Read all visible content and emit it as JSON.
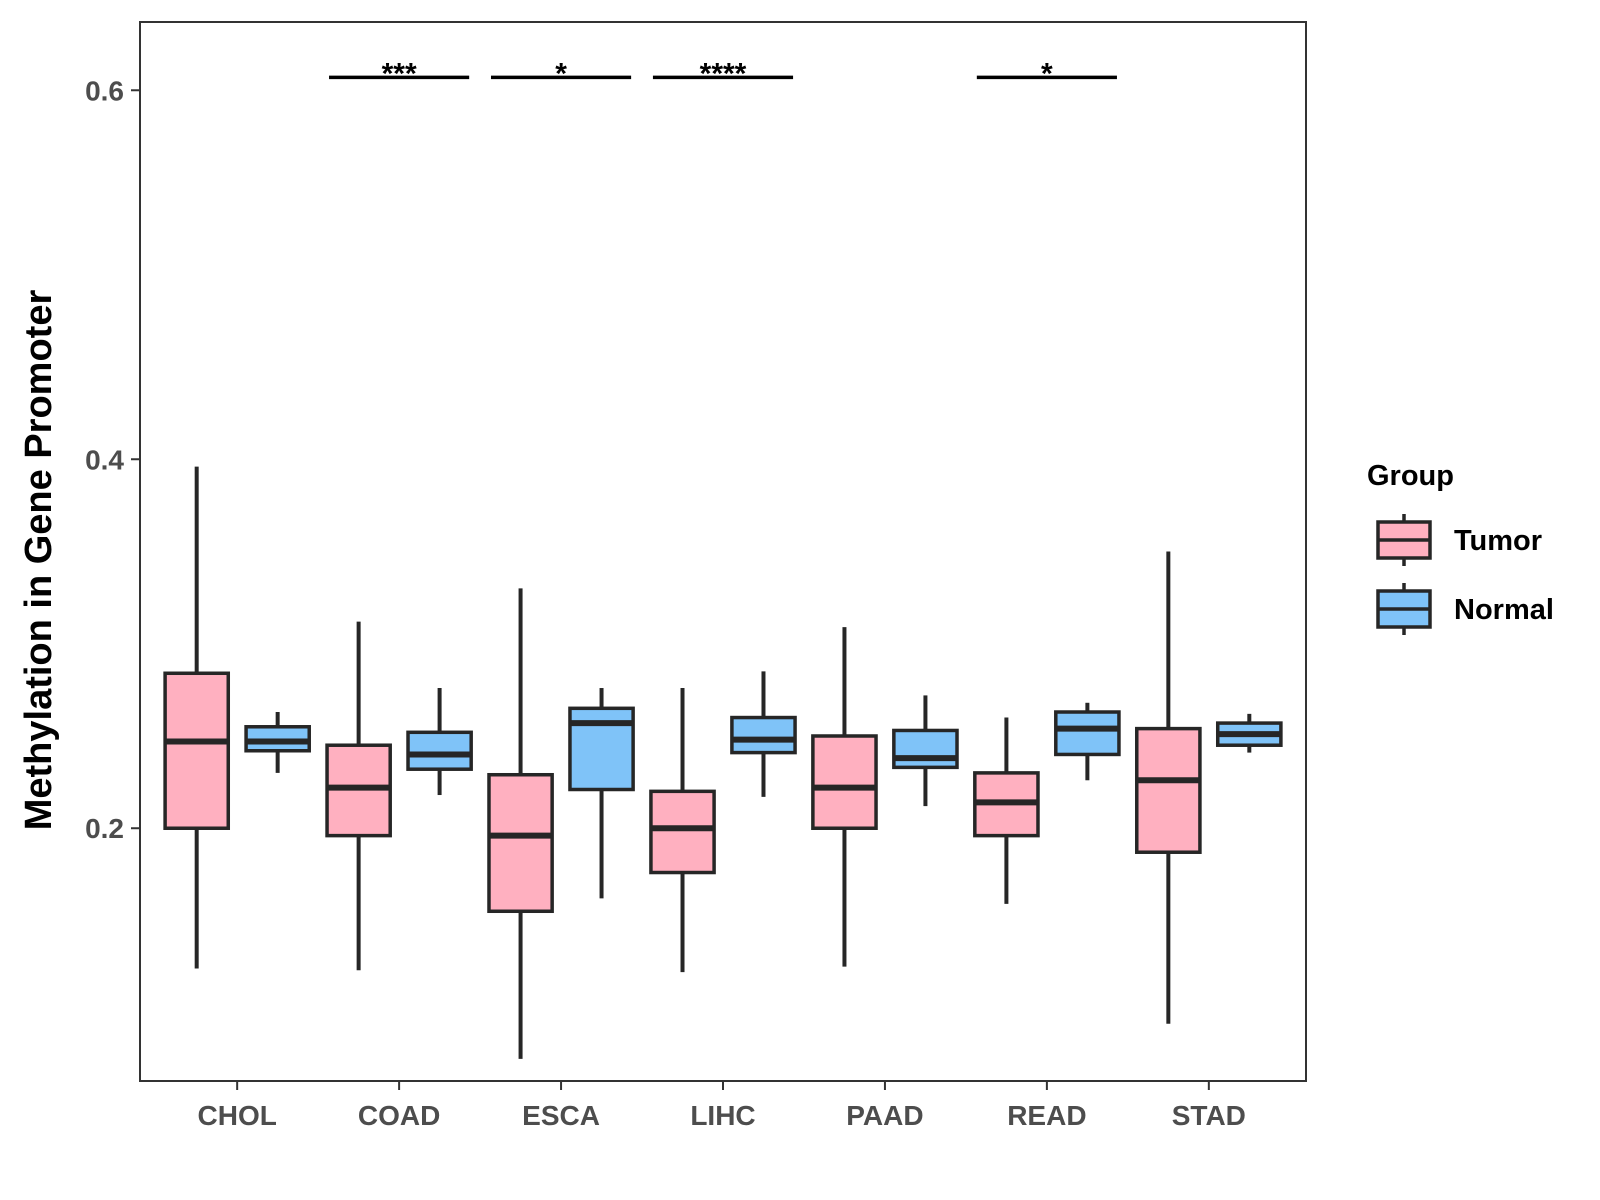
{
  "chart_data": {
    "type": "boxplot",
    "title": "",
    "xlabel": "",
    "ylabel": "Methylation in Gene Promoter",
    "ylim": [
      0.063,
      0.637
    ],
    "yticks": [
      0.2,
      0.4,
      0.6
    ],
    "ytick_labels": [
      "0.2",
      "0.4",
      "0.6"
    ],
    "categories": [
      "CHOL",
      "COAD",
      "ESCA",
      "LIHC",
      "PAAD",
      "READ",
      "STAD"
    ],
    "grid": false,
    "legend": {
      "title": "Group",
      "position": "right",
      "entries": [
        "Tumor",
        "Normal"
      ]
    },
    "colors": {
      "Tumor": "#ffb0c0",
      "Normal": "#7fc3f8",
      "outline": "#262626"
    },
    "series": [
      {
        "name": "Tumor",
        "boxes": [
          {
            "min": 0.124,
            "q1": 0.2,
            "median": 0.247,
            "q3": 0.284,
            "max": 0.396
          },
          {
            "min": 0.123,
            "q1": 0.196,
            "median": 0.222,
            "q3": 0.245,
            "max": 0.312
          },
          {
            "min": 0.075,
            "q1": 0.155,
            "median": 0.196,
            "q3": 0.229,
            "max": 0.33
          },
          {
            "min": 0.122,
            "q1": 0.176,
            "median": 0.2,
            "q3": 0.22,
            "max": 0.276
          },
          {
            "min": 0.125,
            "q1": 0.2,
            "median": 0.222,
            "q3": 0.25,
            "max": 0.309
          },
          {
            "min": 0.159,
            "q1": 0.196,
            "median": 0.214,
            "q3": 0.23,
            "max": 0.26
          },
          {
            "min": 0.094,
            "q1": 0.187,
            "median": 0.226,
            "q3": 0.254,
            "max": 0.35
          }
        ]
      },
      {
        "name": "Normal",
        "boxes": [
          {
            "min": 0.23,
            "q1": 0.242,
            "median": 0.247,
            "q3": 0.255,
            "max": 0.263
          },
          {
            "min": 0.218,
            "q1": 0.232,
            "median": 0.24,
            "q3": 0.252,
            "max": 0.276
          },
          {
            "min": 0.162,
            "q1": 0.221,
            "median": 0.257,
            "q3": 0.265,
            "max": 0.276
          },
          {
            "min": 0.217,
            "q1": 0.241,
            "median": 0.248,
            "q3": 0.26,
            "max": 0.285
          },
          {
            "min": 0.212,
            "q1": 0.233,
            "median": 0.238,
            "q3": 0.253,
            "max": 0.272
          },
          {
            "min": 0.226,
            "q1": 0.24,
            "median": 0.254,
            "q3": 0.263,
            "max": 0.268
          },
          {
            "min": 0.241,
            "q1": 0.245,
            "median": 0.251,
            "q3": 0.257,
            "max": 0.262
          }
        ]
      }
    ],
    "significance": [
      {
        "category": "COAD",
        "label": "***"
      },
      {
        "category": "ESCA",
        "label": "*"
      },
      {
        "category": "LIHC",
        "label": "****"
      },
      {
        "category": "READ",
        "label": "*"
      }
    ],
    "significance_y": 0.607
  }
}
